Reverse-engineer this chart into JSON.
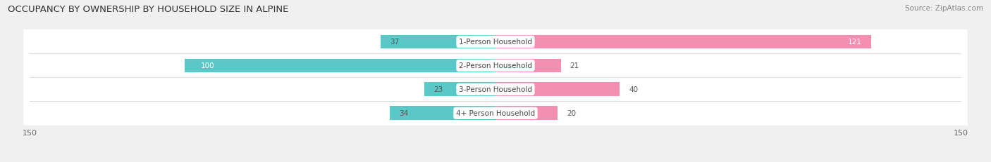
{
  "title": "OCCUPANCY BY OWNERSHIP BY HOUSEHOLD SIZE IN ALPINE",
  "source": "Source: ZipAtlas.com",
  "categories": [
    "1-Person Household",
    "2-Person Household",
    "3-Person Household",
    "4+ Person Household"
  ],
  "owner_values": [
    37,
    100,
    23,
    34
  ],
  "renter_values": [
    121,
    21,
    40,
    20
  ],
  "owner_color": "#5bc8c8",
  "renter_color": "#f48fb1",
  "axis_max": 150,
  "bar_height": 0.58,
  "background_color": "#f0f0f0",
  "row_bg_color": "#ffffff",
  "title_fontsize": 9.5,
  "source_fontsize": 7.5,
  "label_fontsize": 7.5,
  "value_fontsize": 7.5,
  "tick_fontsize": 8
}
